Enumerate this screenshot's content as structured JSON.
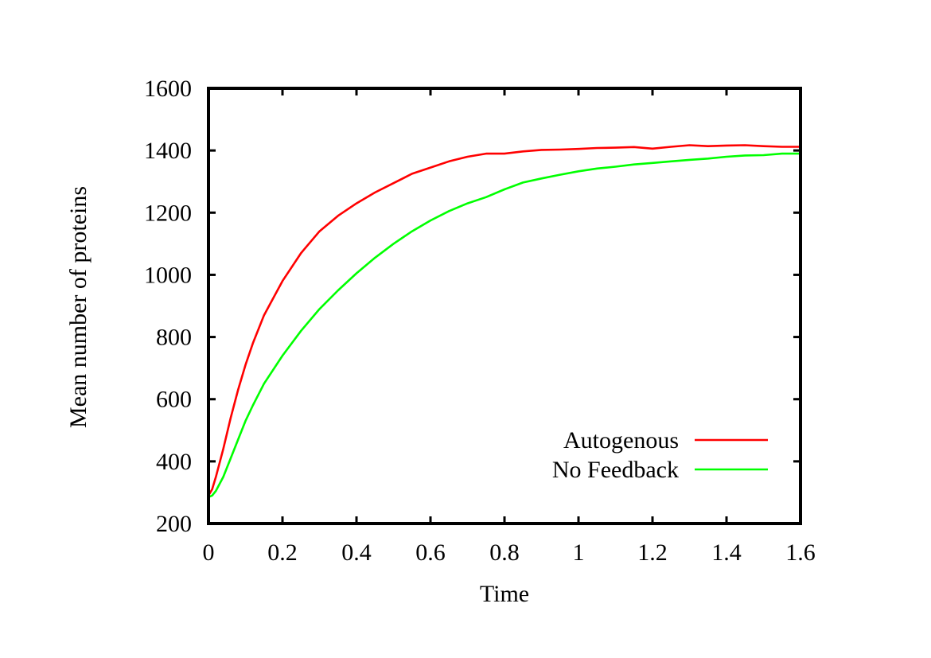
{
  "chart_data": {
    "type": "line",
    "title": "",
    "xlabel": "Time",
    "ylabel": "Mean number of proteins",
    "xlim": [
      0,
      1.6
    ],
    "ylim": [
      200,
      1600
    ],
    "xticks": [
      0,
      0.2,
      0.4,
      0.6,
      0.8,
      1,
      1.2,
      1.4,
      1.6
    ],
    "xtick_labels": [
      "0",
      "0.2",
      "0.4",
      "0.6",
      "0.8",
      "1",
      "1.2",
      "1.4",
      "1.6"
    ],
    "yticks": [
      200,
      400,
      600,
      800,
      1000,
      1200,
      1400,
      1600
    ],
    "ytick_labels": [
      "200",
      "400",
      "600",
      "800",
      "1000",
      "1200",
      "1400",
      "1600"
    ],
    "grid": false,
    "legend_position": "bottom-right",
    "series": [
      {
        "name": "Autogenous",
        "color": "#ff0000",
        "x": [
          0,
          0.01,
          0.02,
          0.04,
          0.06,
          0.08,
          0.1,
          0.12,
          0.15,
          0.2,
          0.25,
          0.3,
          0.35,
          0.4,
          0.45,
          0.5,
          0.55,
          0.6,
          0.65,
          0.7,
          0.75,
          0.8,
          0.85,
          0.9,
          0.95,
          1.0,
          1.05,
          1.1,
          1.15,
          1.2,
          1.25,
          1.3,
          1.35,
          1.4,
          1.45,
          1.5,
          1.55,
          1.6
        ],
        "values": [
          290,
          310,
          350,
          440,
          540,
          630,
          710,
          780,
          870,
          980,
          1070,
          1140,
          1190,
          1230,
          1265,
          1295,
          1325,
          1345,
          1365,
          1380,
          1390,
          1390,
          1397,
          1402,
          1403,
          1405,
          1408,
          1409,
          1411,
          1406,
          1412,
          1417,
          1414,
          1416,
          1417,
          1414,
          1412,
          1412
        ]
      },
      {
        "name": "No Feedback",
        "color": "#00ff00",
        "x": [
          0,
          0.01,
          0.02,
          0.04,
          0.06,
          0.08,
          0.1,
          0.12,
          0.15,
          0.2,
          0.25,
          0.3,
          0.35,
          0.4,
          0.45,
          0.5,
          0.55,
          0.6,
          0.65,
          0.7,
          0.75,
          0.8,
          0.85,
          0.9,
          0.95,
          1.0,
          1.05,
          1.1,
          1.15,
          1.2,
          1.25,
          1.3,
          1.35,
          1.4,
          1.45,
          1.5,
          1.55,
          1.6
        ],
        "values": [
          285,
          290,
          305,
          350,
          410,
          470,
          530,
          580,
          650,
          740,
          820,
          890,
          950,
          1005,
          1055,
          1100,
          1140,
          1175,
          1205,
          1230,
          1250,
          1275,
          1297,
          1310,
          1322,
          1333,
          1342,
          1348,
          1355,
          1360,
          1365,
          1370,
          1374,
          1380,
          1384,
          1385,
          1390,
          1390
        ]
      }
    ]
  }
}
